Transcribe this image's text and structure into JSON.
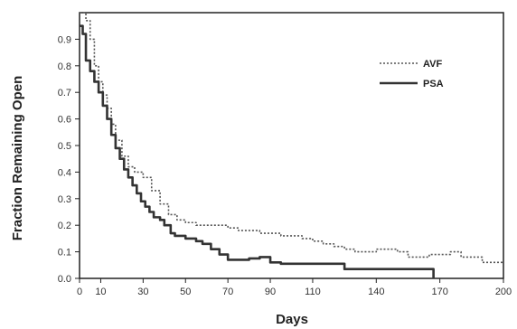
{
  "chart_data": {
    "type": "line",
    "title": "",
    "xlabel": "Days",
    "ylabel": "Fraction Remaining Open",
    "ylim": [
      0,
      1
    ],
    "xlim": [
      0,
      200
    ],
    "grid": false,
    "legend_placement": "top-right",
    "x_ticks": [
      "0",
      "10",
      "30",
      "50",
      "70",
      "90",
      "110",
      "140",
      "170",
      "200"
    ],
    "y_ticks": [
      "0.0",
      "0.1",
      "0.2",
      "0.3",
      "0.4",
      "0.5",
      "0.6",
      "0.7",
      "0.8",
      "0.9"
    ],
    "series": [
      {
        "name": "AVF",
        "style": "dotted",
        "color": "#555555",
        "points": [
          [
            0,
            1.0
          ],
          [
            3,
            0.97
          ],
          [
            5,
            0.9
          ],
          [
            7,
            0.8
          ],
          [
            9,
            0.74
          ],
          [
            11,
            0.69
          ],
          [
            13,
            0.64
          ],
          [
            15,
            0.58
          ],
          [
            17,
            0.52
          ],
          [
            20,
            0.46
          ],
          [
            23,
            0.42
          ],
          [
            26,
            0.4
          ],
          [
            30,
            0.38
          ],
          [
            34,
            0.33
          ],
          [
            38,
            0.28
          ],
          [
            42,
            0.24
          ],
          [
            46,
            0.22
          ],
          [
            50,
            0.21
          ],
          [
            55,
            0.2
          ],
          [
            60,
            0.2
          ],
          [
            65,
            0.2
          ],
          [
            70,
            0.19
          ],
          [
            75,
            0.18
          ],
          [
            80,
            0.18
          ],
          [
            85,
            0.17
          ],
          [
            90,
            0.17
          ],
          [
            95,
            0.16
          ],
          [
            100,
            0.16
          ],
          [
            105,
            0.15
          ],
          [
            110,
            0.14
          ],
          [
            115,
            0.13
          ],
          [
            120,
            0.12
          ],
          [
            125,
            0.11
          ],
          [
            130,
            0.1
          ],
          [
            135,
            0.1
          ],
          [
            140,
            0.11
          ],
          [
            145,
            0.11
          ],
          [
            150,
            0.1
          ],
          [
            155,
            0.08
          ],
          [
            160,
            0.08
          ],
          [
            165,
            0.09
          ],
          [
            170,
            0.09
          ],
          [
            175,
            0.1
          ],
          [
            180,
            0.08
          ],
          [
            185,
            0.08
          ],
          [
            190,
            0.06
          ],
          [
            195,
            0.06
          ],
          [
            200,
            0.06
          ]
        ]
      },
      {
        "name": "PSA",
        "style": "solid",
        "color": "#333333",
        "points": [
          [
            0,
            0.95
          ],
          [
            1.5,
            0.92
          ],
          [
            3,
            0.82
          ],
          [
            5,
            0.78
          ],
          [
            7,
            0.74
          ],
          [
            9,
            0.7
          ],
          [
            11,
            0.65
          ],
          [
            13,
            0.6
          ],
          [
            15,
            0.54
          ],
          [
            17,
            0.49
          ],
          [
            19,
            0.45
          ],
          [
            21,
            0.41
          ],
          [
            23,
            0.38
          ],
          [
            25,
            0.35
          ],
          [
            27,
            0.32
          ],
          [
            29,
            0.29
          ],
          [
            31,
            0.27
          ],
          [
            33,
            0.25
          ],
          [
            35,
            0.23
          ],
          [
            38,
            0.22
          ],
          [
            40,
            0.2
          ],
          [
            43,
            0.17
          ],
          [
            45,
            0.16
          ],
          [
            50,
            0.15
          ],
          [
            55,
            0.14
          ],
          [
            58,
            0.13
          ],
          [
            62,
            0.11
          ],
          [
            66,
            0.09
          ],
          [
            70,
            0.07
          ],
          [
            75,
            0.07
          ],
          [
            80,
            0.075
          ],
          [
            85,
            0.08
          ],
          [
            90,
            0.06
          ],
          [
            95,
            0.055
          ],
          [
            100,
            0.055
          ],
          [
            110,
            0.055
          ],
          [
            120,
            0.055
          ],
          [
            125,
            0.035
          ],
          [
            140,
            0.035
          ],
          [
            155,
            0.035
          ],
          [
            165,
            0.035
          ],
          [
            167,
            0.0
          ]
        ]
      }
    ]
  }
}
